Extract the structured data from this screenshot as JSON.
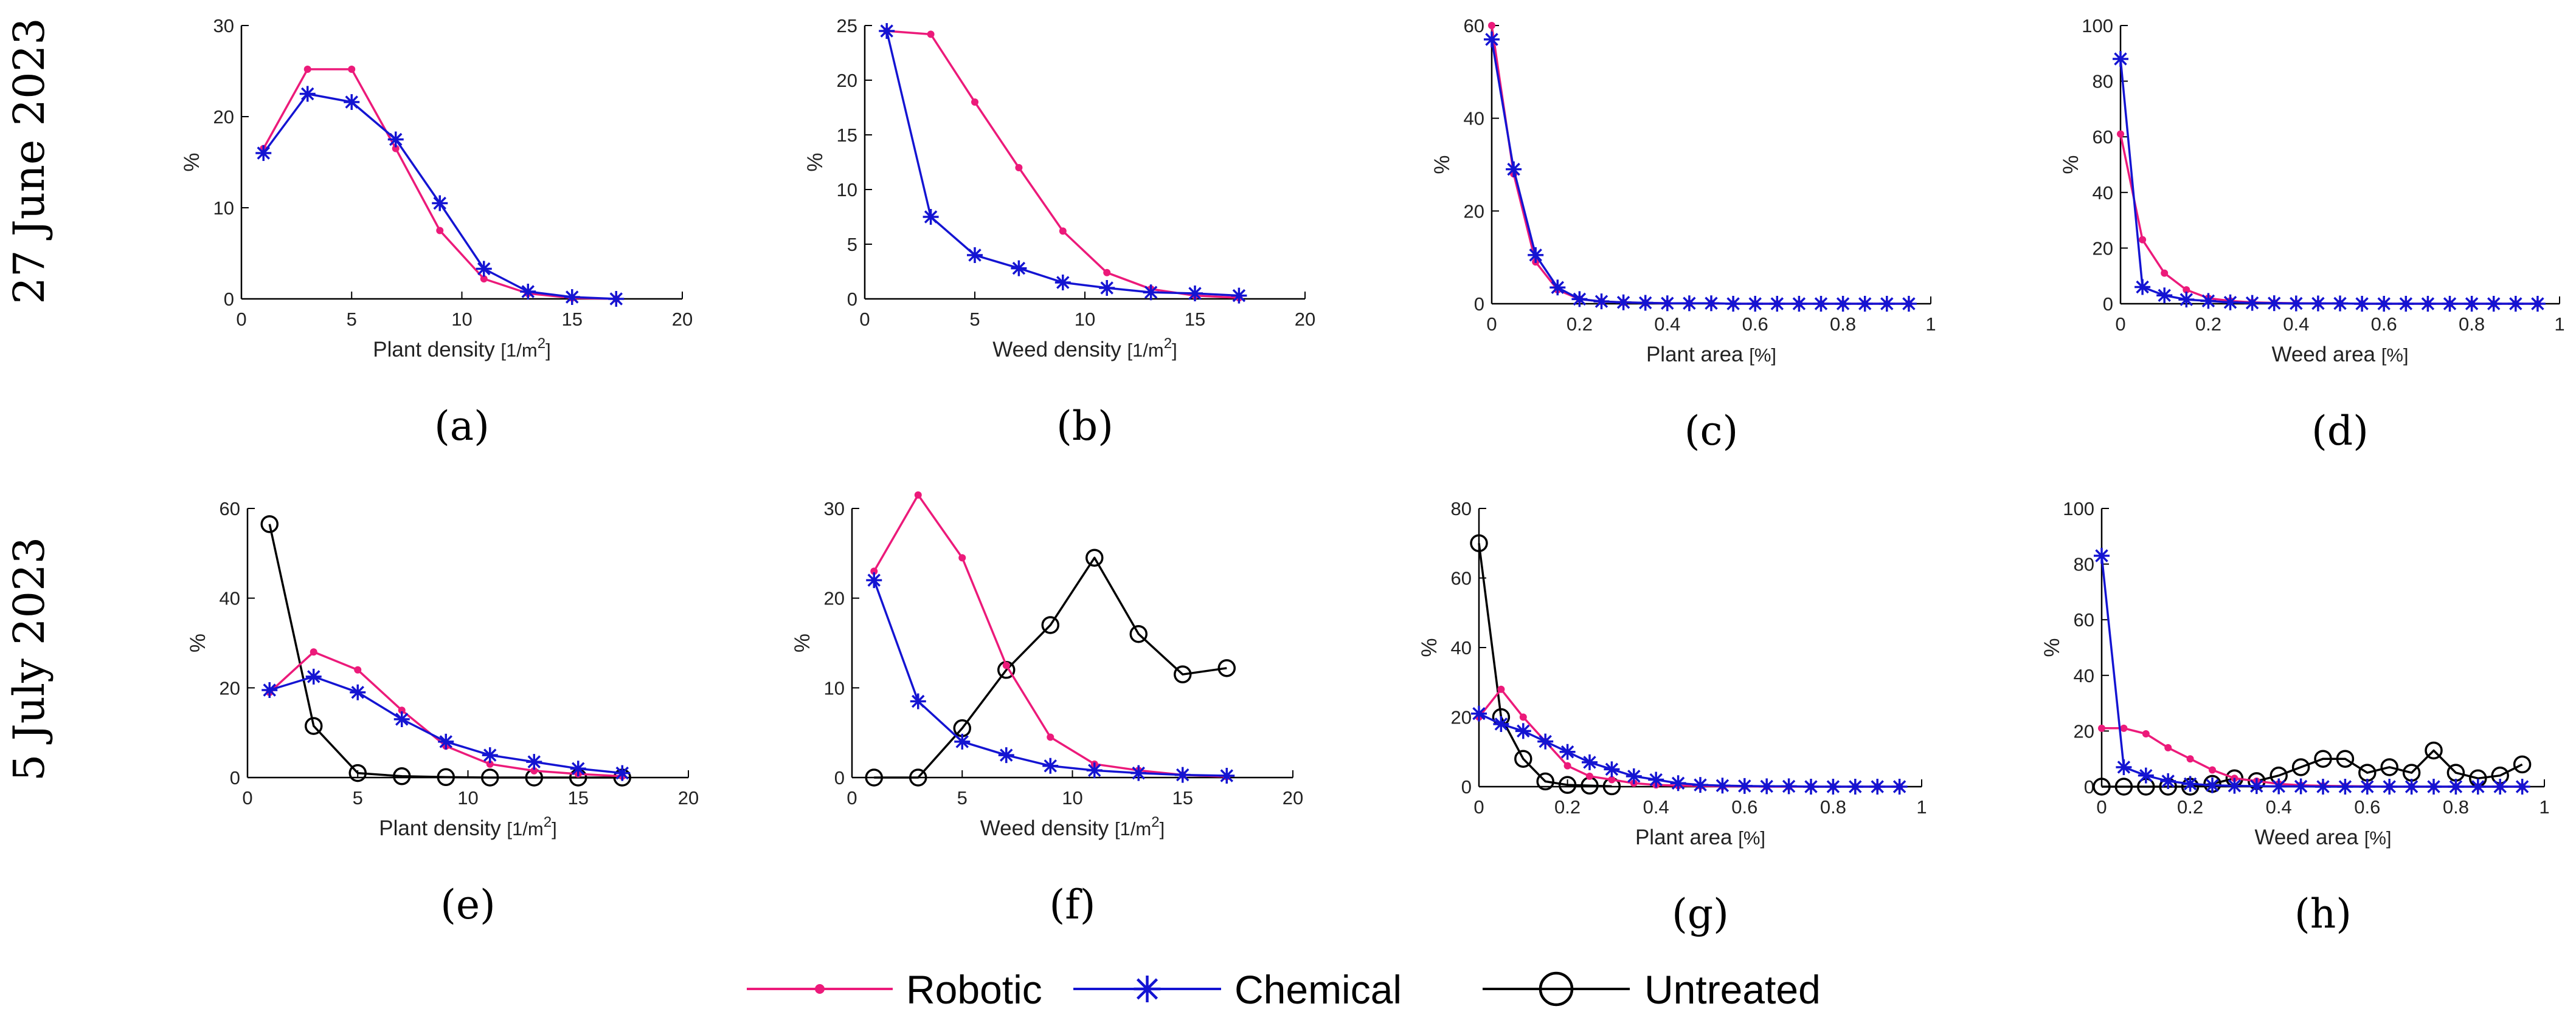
{
  "series_styles": {
    "robotic": {
      "name": "Robotic",
      "color": "#ec1a7a",
      "marker": "dot"
    },
    "chemical": {
      "name": "Chemical",
      "color": "#1414d2",
      "marker": "star"
    },
    "untreated": {
      "name": "Untreated",
      "color": "#000000",
      "marker": "circle"
    }
  },
  "legend": {
    "entries": [
      "Robotic",
      "Chemical",
      "Untreated"
    ],
    "placement": "bottom-center"
  },
  "row_labels": [
    "27 June 2023",
    "5 July 2023"
  ],
  "chart_data": [
    {
      "id": "a",
      "panel_label": "(a)",
      "type": "line",
      "xlabel": "Plant density",
      "xunit": "[1/m",
      "xunit_sup": "2",
      "xunit_close": "]",
      "ylabel": "%",
      "xlim": [
        0,
        20
      ],
      "ylim": [
        0,
        30
      ],
      "xticks": [
        0,
        5,
        10,
        15,
        20
      ],
      "xtick_labels": [
        "0",
        "5",
        "10",
        "15",
        "20"
      ],
      "yticks": [
        0,
        10,
        20,
        30
      ],
      "ytick_labels": [
        "0",
        "10",
        "20",
        "30"
      ],
      "series": [
        {
          "key": "robotic",
          "x": [
            1,
            3,
            5,
            7,
            9,
            11,
            13,
            15,
            17
          ],
          "y": [
            16.5,
            25.2,
            25.2,
            16.5,
            7.5,
            2.2,
            0.6,
            0.1,
            0
          ]
        },
        {
          "key": "chemical",
          "x": [
            1,
            3,
            5,
            7,
            9,
            11,
            13,
            15,
            17
          ],
          "y": [
            16,
            22.5,
            21.6,
            17.5,
            10.5,
            3.3,
            0.8,
            0.2,
            0
          ]
        }
      ]
    },
    {
      "id": "b",
      "panel_label": "(b)",
      "type": "line",
      "xlabel": "Weed density",
      "xunit": "[1/m",
      "xunit_sup": "2",
      "xunit_close": "]",
      "ylabel": "%",
      "xlim": [
        0,
        20
      ],
      "ylim": [
        0,
        25
      ],
      "xticks": [
        0,
        5,
        10,
        15,
        20
      ],
      "xtick_labels": [
        "0",
        "5",
        "10",
        "15",
        "20"
      ],
      "yticks": [
        0,
        5,
        10,
        15,
        20,
        25
      ],
      "ytick_labels": [
        "0",
        "5",
        "10",
        "15",
        "20",
        "25"
      ],
      "series": [
        {
          "key": "robotic",
          "x": [
            1,
            3,
            5,
            7,
            9,
            11,
            13,
            15,
            17
          ],
          "y": [
            24.5,
            24.2,
            18,
            12,
            6.2,
            2.4,
            0.9,
            0.3,
            0.1
          ]
        },
        {
          "key": "chemical",
          "x": [
            1,
            3,
            5,
            7,
            9,
            11,
            13,
            15,
            17
          ],
          "y": [
            24.5,
            7.5,
            4,
            2.8,
            1.5,
            1,
            0.6,
            0.5,
            0.3
          ]
        }
      ]
    },
    {
      "id": "c",
      "panel_label": "(c)",
      "type": "line",
      "xlabel": "Plant area",
      "xunit": "[%]",
      "xunit_sup": "",
      "xunit_close": "",
      "ylabel": "%",
      "xlim": [
        0,
        1
      ],
      "ylim": [
        0,
        60
      ],
      "xticks": [
        0,
        0.2,
        0.4,
        0.6,
        0.8,
        1
      ],
      "xtick_labels": [
        "0",
        "0.2",
        "0.4",
        "0.6",
        "0.8",
        "1"
      ],
      "yticks": [
        0,
        20,
        40,
        60
      ],
      "ytick_labels": [
        "0",
        "20",
        "40",
        "60"
      ],
      "series": [
        {
          "key": "robotic",
          "x": [
            0,
            0.05,
            0.1,
            0.15,
            0.2,
            0.25,
            0.3,
            0.35,
            0.4,
            0.45,
            0.5,
            0.55,
            0.6,
            0.65,
            0.7,
            0.75,
            0.8,
            0.85,
            0.9,
            0.95
          ],
          "y": [
            60,
            28,
            9,
            3,
            1,
            0.5,
            0.3,
            0.2,
            0.1,
            0.1,
            0.1,
            0,
            0,
            0,
            0,
            0,
            0,
            0,
            0,
            0
          ]
        },
        {
          "key": "chemical",
          "x": [
            0,
            0.05,
            0.1,
            0.15,
            0.2,
            0.25,
            0.3,
            0.35,
            0.4,
            0.45,
            0.5,
            0.55,
            0.6,
            0.65,
            0.7,
            0.75,
            0.8,
            0.85,
            0.9,
            0.95
          ],
          "y": [
            57,
            29,
            10.5,
            3.5,
            1,
            0.5,
            0.3,
            0.2,
            0.1,
            0.1,
            0.1,
            0,
            0,
            0,
            0,
            0,
            0,
            0,
            0,
            0
          ]
        }
      ]
    },
    {
      "id": "d",
      "panel_label": "(d)",
      "type": "line",
      "xlabel": "Weed area",
      "xunit": "[%]",
      "xunit_sup": "",
      "xunit_close": "",
      "ylabel": "%",
      "xlim": [
        0,
        1
      ],
      "ylim": [
        0,
        100
      ],
      "xticks": [
        0,
        0.2,
        0.4,
        0.6,
        0.8,
        1
      ],
      "xtick_labels": [
        "0",
        "0.2",
        "0.4",
        "0.6",
        "0.8",
        "1"
      ],
      "yticks": [
        0,
        20,
        40,
        60,
        80,
        100
      ],
      "ytick_labels": [
        "0",
        "20",
        "40",
        "60",
        "80",
        "100"
      ],
      "series": [
        {
          "key": "robotic",
          "x": [
            0,
            0.05,
            0.1,
            0.15,
            0.2,
            0.25,
            0.3,
            0.35,
            0.4,
            0.45,
            0.5,
            0.55,
            0.6,
            0.65,
            0.7,
            0.75,
            0.8,
            0.85,
            0.9,
            0.95
          ],
          "y": [
            61,
            23,
            11,
            5,
            2,
            1,
            0.5,
            0.3,
            0.2,
            0.1,
            0.1,
            0,
            0,
            0,
            0,
            0,
            0,
            0,
            0,
            0
          ]
        },
        {
          "key": "chemical",
          "x": [
            0,
            0.05,
            0.1,
            0.15,
            0.2,
            0.25,
            0.3,
            0.35,
            0.4,
            0.45,
            0.5,
            0.55,
            0.6,
            0.65,
            0.7,
            0.75,
            0.8,
            0.85,
            0.9,
            0.95
          ],
          "y": [
            88,
            6,
            3,
            1.5,
            1,
            0.5,
            0.3,
            0.2,
            0.1,
            0.1,
            0.1,
            0,
            0,
            0,
            0,
            0,
            0,
            0,
            0,
            0
          ]
        }
      ]
    },
    {
      "id": "e",
      "panel_label": "(e)",
      "type": "line",
      "xlabel": "Plant density",
      "xunit": "[1/m",
      "xunit_sup": "2",
      "xunit_close": "]",
      "ylabel": "%",
      "xlim": [
        0,
        20
      ],
      "ylim": [
        0,
        60
      ],
      "xticks": [
        0,
        5,
        10,
        15,
        20
      ],
      "xtick_labels": [
        "0",
        "5",
        "10",
        "15",
        "20"
      ],
      "yticks": [
        0,
        20,
        40,
        60
      ],
      "ytick_labels": [
        "0",
        "20",
        "40",
        "60"
      ],
      "series": [
        {
          "key": "robotic",
          "x": [
            1,
            3,
            5,
            7,
            9,
            11,
            13,
            15,
            17
          ],
          "y": [
            19,
            28,
            24,
            15,
            7,
            3,
            1.5,
            0.8,
            0.3
          ]
        },
        {
          "key": "chemical",
          "x": [
            1,
            3,
            5,
            7,
            9,
            11,
            13,
            15,
            17
          ],
          "y": [
            19.5,
            22.5,
            19,
            13,
            8,
            5,
            3.5,
            2,
            1
          ]
        },
        {
          "key": "untreated",
          "x": [
            1,
            3,
            5,
            7,
            9,
            11,
            13,
            15,
            17
          ],
          "y": [
            56.5,
            11.5,
            1,
            0.3,
            0.1,
            0,
            0,
            0,
            0
          ]
        }
      ]
    },
    {
      "id": "f",
      "panel_label": "(f)",
      "type": "line",
      "xlabel": "Weed density",
      "xunit": "[1/m",
      "xunit_sup": "2",
      "xunit_close": "]",
      "ylabel": "%",
      "xlim": [
        0,
        20
      ],
      "ylim": [
        0,
        30
      ],
      "xticks": [
        0,
        5,
        10,
        15,
        20
      ],
      "xtick_labels": [
        "0",
        "5",
        "10",
        "15",
        "20"
      ],
      "yticks": [
        0,
        10,
        20,
        30
      ],
      "ytick_labels": [
        "0",
        "10",
        "20",
        "30"
      ],
      "series": [
        {
          "key": "robotic",
          "x": [
            1,
            3,
            5,
            7,
            9,
            11,
            13,
            15,
            17
          ],
          "y": [
            23,
            31.5,
            24.5,
            12.5,
            4.5,
            1.5,
            0.8,
            0.3,
            0.1
          ]
        },
        {
          "key": "chemical",
          "x": [
            1,
            3,
            5,
            7,
            9,
            11,
            13,
            15,
            17
          ],
          "y": [
            22,
            8.5,
            4,
            2.5,
            1.3,
            0.8,
            0.5,
            0.3,
            0.2
          ]
        },
        {
          "key": "untreated",
          "x": [
            1,
            3,
            5,
            7,
            9,
            11,
            13,
            15,
            17
          ],
          "y": [
            0,
            0,
            5.5,
            12,
            17,
            24.5,
            16,
            11.5,
            12.2
          ]
        }
      ]
    },
    {
      "id": "g",
      "panel_label": "(g)",
      "type": "line",
      "xlabel": "Plant area",
      "xunit": "[%]",
      "xunit_sup": "",
      "xunit_close": "",
      "ylabel": "%",
      "xlim": [
        0,
        1
      ],
      "ylim": [
        0,
        80
      ],
      "xticks": [
        0,
        0.2,
        0.4,
        0.6,
        0.8,
        1
      ],
      "xtick_labels": [
        "0",
        "0.2",
        "0.4",
        "0.6",
        "0.8",
        "1"
      ],
      "yticks": [
        0,
        20,
        40,
        60,
        80
      ],
      "ytick_labels": [
        "0",
        "20",
        "40",
        "60",
        "80"
      ],
      "series": [
        {
          "key": "robotic",
          "x": [
            0,
            0.05,
            0.1,
            0.15,
            0.2,
            0.25,
            0.3,
            0.35,
            0.4,
            0.45,
            0.5,
            0.55,
            0.6,
            0.65,
            0.7,
            0.75,
            0.8,
            0.85,
            0.9,
            0.95
          ],
          "y": [
            20,
            28,
            20,
            13,
            6,
            3,
            2,
            1,
            0.5,
            0.3,
            0.2,
            0.1,
            0.1,
            0,
            0,
            0,
            0,
            0,
            0,
            0
          ]
        },
        {
          "key": "chemical",
          "x": [
            0,
            0.05,
            0.1,
            0.15,
            0.2,
            0.25,
            0.3,
            0.35,
            0.4,
            0.45,
            0.5,
            0.55,
            0.6,
            0.65,
            0.7,
            0.75,
            0.8,
            0.85,
            0.9,
            0.95
          ],
          "y": [
            21,
            18,
            16,
            13,
            10,
            7,
            5,
            3,
            2,
            1,
            0.5,
            0.3,
            0.2,
            0.1,
            0.1,
            0,
            0,
            0,
            0,
            0
          ]
        },
        {
          "key": "untreated",
          "x": [
            0,
            0.05,
            0.1,
            0.15,
            0.2,
            0.25,
            0.3
          ],
          "y": [
            70,
            20,
            8,
            1.5,
            0.5,
            0.3,
            0.1
          ]
        }
      ]
    },
    {
      "id": "h",
      "panel_label": "(h)",
      "type": "line",
      "xlabel": "Weed area",
      "xunit": "[%]",
      "xunit_sup": "",
      "xunit_close": "",
      "ylabel": "%",
      "xlim": [
        0,
        1
      ],
      "ylim": [
        0,
        100
      ],
      "xticks": [
        0,
        0.2,
        0.4,
        0.6,
        0.8,
        1
      ],
      "xtick_labels": [
        "0",
        "0.2",
        "0.4",
        "0.6",
        "0.8",
        "1"
      ],
      "yticks": [
        0,
        20,
        40,
        60,
        80,
        100
      ],
      "ytick_labels": [
        "0",
        "20",
        "40",
        "60",
        "80",
        "100"
      ],
      "series": [
        {
          "key": "robotic",
          "x": [
            0,
            0.05,
            0.1,
            0.15,
            0.2,
            0.25,
            0.3,
            0.35,
            0.4,
            0.45,
            0.5,
            0.55,
            0.6,
            0.65,
            0.7,
            0.75,
            0.8,
            0.85,
            0.9,
            0.95
          ],
          "y": [
            21,
            21,
            19,
            14,
            10,
            6,
            3,
            2,
            1,
            0.5,
            0.3,
            0.2,
            0.1,
            0,
            0,
            0,
            0,
            0,
            0,
            0
          ]
        },
        {
          "key": "chemical",
          "x": [
            0,
            0.05,
            0.1,
            0.15,
            0.2,
            0.25,
            0.3,
            0.35,
            0.4,
            0.45,
            0.5,
            0.55,
            0.6,
            0.65,
            0.7,
            0.75,
            0.8,
            0.85,
            0.9,
            0.95
          ],
          "y": [
            83,
            7,
            4,
            2,
            1,
            0.5,
            0.3,
            0.2,
            0.1,
            0.1,
            0,
            0,
            0,
            0,
            0,
            0,
            0,
            0,
            0,
            0
          ]
        },
        {
          "key": "untreated",
          "x": [
            0,
            0.05,
            0.1,
            0.15,
            0.2,
            0.25,
            0.3,
            0.35,
            0.4,
            0.45,
            0.5,
            0.55,
            0.6,
            0.65,
            0.7,
            0.75,
            0.8,
            0.85,
            0.9,
            0.95
          ],
          "y": [
            0,
            0,
            0,
            0,
            0,
            1,
            3,
            2,
            4,
            7,
            10,
            10,
            5,
            7,
            5,
            13,
            5,
            3,
            4,
            8
          ]
        }
      ]
    }
  ]
}
